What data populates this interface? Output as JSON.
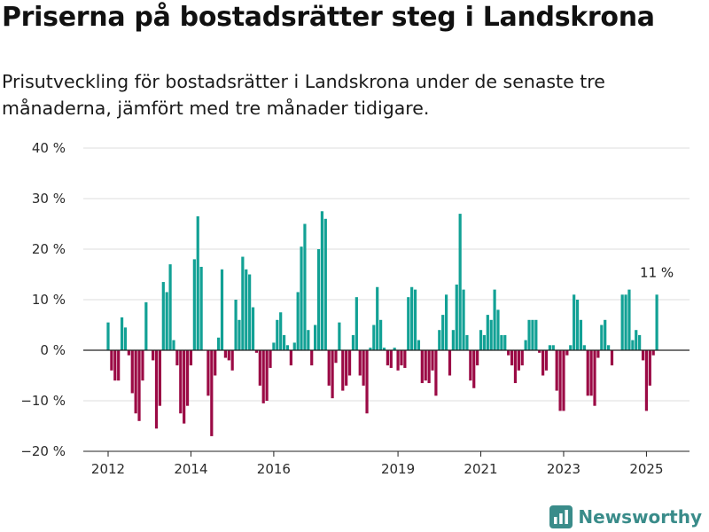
{
  "title": "Priserna på bostadsrätter steg i Landskrona",
  "subtitle": "Prisutveckling för bostadsrätter i Landskrona under de senaste tre månaderna, jämfört med tre månader tidigare.",
  "logo": {
    "text": "Newsworthy",
    "icon": "bar-chart-logo-icon"
  },
  "colors": {
    "positive": "#12a195",
    "negative": "#9b0a45",
    "grid": "#dddddd",
    "axis": "#222222"
  },
  "chart_data": {
    "type": "bar",
    "unit": "%",
    "x_start": "2012-01",
    "x_end": "2025-05",
    "ylim": [
      -20,
      40
    ],
    "y_ticks": [
      40,
      30,
      20,
      10,
      0,
      -10,
      -20
    ],
    "y_tick_labels": [
      "40 %",
      "30 %",
      "20 %",
      "10 %",
      "0 %",
      "−10 %",
      "−20 %"
    ],
    "x_tick_labels": [
      {
        "x": "2012-01",
        "label": "2012"
      },
      {
        "x": "2014-01",
        "label": "2014"
      },
      {
        "x": "2016-01",
        "label": "2016"
      },
      {
        "x": "2019-01",
        "label": "2019"
      },
      {
        "x": "2021-01",
        "label": "2021"
      },
      {
        "x": "2023-01",
        "label": "2023"
      },
      {
        "x": "2025-01",
        "label": "2025"
      }
    ],
    "grid": true,
    "bars": [
      {
        "x": "2012-01",
        "value": 5.5
      },
      {
        "x": "2012-02",
        "value": -4.0
      },
      {
        "x": "2012-03",
        "value": -6.0
      },
      {
        "x": "2012-04",
        "value": -6.0
      },
      {
        "x": "2012-05",
        "value": 6.5
      },
      {
        "x": "2012-06",
        "value": 4.5
      },
      {
        "x": "2012-07",
        "value": -1.0
      },
      {
        "x": "2012-08",
        "value": -8.5
      },
      {
        "x": "2012-09",
        "value": -12.5
      },
      {
        "x": "2012-10",
        "value": -14.0
      },
      {
        "x": "2012-11",
        "value": -6.0
      },
      {
        "x": "2012-12",
        "value": 9.5
      },
      {
        "x": "2013-02",
        "value": -2.0
      },
      {
        "x": "2013-03",
        "value": -15.5
      },
      {
        "x": "2013-04",
        "value": -11.0
      },
      {
        "x": "2013-05",
        "value": 13.5
      },
      {
        "x": "2013-06",
        "value": 11.5
      },
      {
        "x": "2013-07",
        "value": 17.0
      },
      {
        "x": "2013-08",
        "value": 2.0
      },
      {
        "x": "2013-09",
        "value": -3.0
      },
      {
        "x": "2013-10",
        "value": -12.5
      },
      {
        "x": "2013-11",
        "value": -14.5
      },
      {
        "x": "2013-12",
        "value": -11.0
      },
      {
        "x": "2014-01",
        "value": -3.0
      },
      {
        "x": "2014-02",
        "value": 18.0
      },
      {
        "x": "2014-03",
        "value": 26.5
      },
      {
        "x": "2014-04",
        "value": 16.5
      },
      {
        "x": "2014-06",
        "value": -9.0
      },
      {
        "x": "2014-07",
        "value": -17.0
      },
      {
        "x": "2014-08",
        "value": -5.0
      },
      {
        "x": "2014-09",
        "value": 2.5
      },
      {
        "x": "2014-10",
        "value": 16.0
      },
      {
        "x": "2014-11",
        "value": -1.5
      },
      {
        "x": "2014-12",
        "value": -2.0
      },
      {
        "x": "2015-01",
        "value": -4.0
      },
      {
        "x": "2015-02",
        "value": 10.0
      },
      {
        "x": "2015-03",
        "value": 6.0
      },
      {
        "x": "2015-04",
        "value": 18.5
      },
      {
        "x": "2015-05",
        "value": 16.0
      },
      {
        "x": "2015-06",
        "value": 15.0
      },
      {
        "x": "2015-07",
        "value": 8.5
      },
      {
        "x": "2015-08",
        "value": -0.5
      },
      {
        "x": "2015-09",
        "value": -7.0
      },
      {
        "x": "2015-10",
        "value": -10.5
      },
      {
        "x": "2015-11",
        "value": -10.0
      },
      {
        "x": "2015-12",
        "value": -3.5
      },
      {
        "x": "2016-01",
        "value": 1.5
      },
      {
        "x": "2016-02",
        "value": 6.0
      },
      {
        "x": "2016-03",
        "value": 7.5
      },
      {
        "x": "2016-04",
        "value": 3.0
      },
      {
        "x": "2016-05",
        "value": 1.0
      },
      {
        "x": "2016-06",
        "value": -3.0
      },
      {
        "x": "2016-07",
        "value": 1.5
      },
      {
        "x": "2016-08",
        "value": 11.5
      },
      {
        "x": "2016-09",
        "value": 20.5
      },
      {
        "x": "2016-10",
        "value": 25.0
      },
      {
        "x": "2016-11",
        "value": 4.0
      },
      {
        "x": "2016-12",
        "value": -3.0
      },
      {
        "x": "2017-01",
        "value": 5.0
      },
      {
        "x": "2017-02",
        "value": 20.0
      },
      {
        "x": "2017-03",
        "value": 27.5
      },
      {
        "x": "2017-04",
        "value": 26.0
      },
      {
        "x": "2017-05",
        "value": -7.0
      },
      {
        "x": "2017-06",
        "value": -9.5
      },
      {
        "x": "2017-07",
        "value": -2.5
      },
      {
        "x": "2017-08",
        "value": 5.5
      },
      {
        "x": "2017-09",
        "value": -8.0
      },
      {
        "x": "2017-10",
        "value": -7.0
      },
      {
        "x": "2017-11",
        "value": -5.0
      },
      {
        "x": "2017-12",
        "value": 3.0
      },
      {
        "x": "2018-01",
        "value": 10.5
      },
      {
        "x": "2018-02",
        "value": -5.0
      },
      {
        "x": "2018-03",
        "value": -7.0
      },
      {
        "x": "2018-04",
        "value": -12.5
      },
      {
        "x": "2018-05",
        "value": 0.5
      },
      {
        "x": "2018-06",
        "value": 5.0
      },
      {
        "x": "2018-07",
        "value": 12.5
      },
      {
        "x": "2018-08",
        "value": 6.0
      },
      {
        "x": "2018-09",
        "value": 0.5
      },
      {
        "x": "2018-10",
        "value": -3.0
      },
      {
        "x": "2018-11",
        "value": -3.5
      },
      {
        "x": "2018-12",
        "value": 0.5
      },
      {
        "x": "2019-01",
        "value": -4.0
      },
      {
        "x": "2019-02",
        "value": -3.0
      },
      {
        "x": "2019-03",
        "value": -3.5
      },
      {
        "x": "2019-04",
        "value": 10.5
      },
      {
        "x": "2019-05",
        "value": 12.5
      },
      {
        "x": "2019-06",
        "value": 12.0
      },
      {
        "x": "2019-07",
        "value": 2.0
      },
      {
        "x": "2019-08",
        "value": -6.5
      },
      {
        "x": "2019-09",
        "value": -6.0
      },
      {
        "x": "2019-10",
        "value": -6.5
      },
      {
        "x": "2019-11",
        "value": -4.0
      },
      {
        "x": "2019-12",
        "value": -9.0
      },
      {
        "x": "2020-01",
        "value": 4.0
      },
      {
        "x": "2020-02",
        "value": 7.0
      },
      {
        "x": "2020-03",
        "value": 11.0
      },
      {
        "x": "2020-04",
        "value": -5.0
      },
      {
        "x": "2020-05",
        "value": 4.0
      },
      {
        "x": "2020-06",
        "value": 13.0
      },
      {
        "x": "2020-07",
        "value": 27.0
      },
      {
        "x": "2020-08",
        "value": 12.0
      },
      {
        "x": "2020-09",
        "value": 3.0
      },
      {
        "x": "2020-10",
        "value": -6.0
      },
      {
        "x": "2020-11",
        "value": -7.5
      },
      {
        "x": "2020-12",
        "value": -3.0
      },
      {
        "x": "2021-01",
        "value": 4.0
      },
      {
        "x": "2021-02",
        "value": 3.0
      },
      {
        "x": "2021-03",
        "value": 7.0
      },
      {
        "x": "2021-04",
        "value": 6.0
      },
      {
        "x": "2021-05",
        "value": 12.0
      },
      {
        "x": "2021-06",
        "value": 8.0
      },
      {
        "x": "2021-07",
        "value": 3.0
      },
      {
        "x": "2021-08",
        "value": 3.0
      },
      {
        "x": "2021-09",
        "value": -1.0
      },
      {
        "x": "2021-10",
        "value": -3.0
      },
      {
        "x": "2021-11",
        "value": -6.5
      },
      {
        "x": "2021-12",
        "value": -4.0
      },
      {
        "x": "2022-01",
        "value": -3.0
      },
      {
        "x": "2022-02",
        "value": 2.0
      },
      {
        "x": "2022-03",
        "value": 6.0
      },
      {
        "x": "2022-04",
        "value": 6.0
      },
      {
        "x": "2022-05",
        "value": 6.0
      },
      {
        "x": "2022-06",
        "value": -0.5
      },
      {
        "x": "2022-07",
        "value": -5.0
      },
      {
        "x": "2022-08",
        "value": -4.0
      },
      {
        "x": "2022-09",
        "value": 1.0
      },
      {
        "x": "2022-10",
        "value": 1.0
      },
      {
        "x": "2022-11",
        "value": -8.0
      },
      {
        "x": "2022-12",
        "value": -12.0
      },
      {
        "x": "2023-01",
        "value": -12.0
      },
      {
        "x": "2023-02",
        "value": -1.0
      },
      {
        "x": "2023-03",
        "value": 1.0
      },
      {
        "x": "2023-04",
        "value": 11.0
      },
      {
        "x": "2023-05",
        "value": 10.0
      },
      {
        "x": "2023-06",
        "value": 6.0
      },
      {
        "x": "2023-07",
        "value": 1.0
      },
      {
        "x": "2023-08",
        "value": -9.0
      },
      {
        "x": "2023-09",
        "value": -9.0
      },
      {
        "x": "2023-10",
        "value": -11.0
      },
      {
        "x": "2023-11",
        "value": -1.5
      },
      {
        "x": "2023-12",
        "value": 5.0
      },
      {
        "x": "2024-01",
        "value": 6.0
      },
      {
        "x": "2024-02",
        "value": 1.0
      },
      {
        "x": "2024-03",
        "value": -3.0
      },
      {
        "x": "2024-06",
        "value": 11.0
      },
      {
        "x": "2024-07",
        "value": 11.0
      },
      {
        "x": "2024-08",
        "value": 12.0
      },
      {
        "x": "2024-09",
        "value": 2.0
      },
      {
        "x": "2024-10",
        "value": 4.0
      },
      {
        "x": "2024-11",
        "value": 3.0
      },
      {
        "x": "2024-12",
        "value": -2.0
      },
      {
        "x": "2025-01",
        "value": -12.0
      },
      {
        "x": "2025-02",
        "value": -7.0
      },
      {
        "x": "2025-03",
        "value": -1.0
      },
      {
        "x": "2025-04",
        "value": 11.0
      }
    ],
    "annotation": {
      "x": "2025-04",
      "value": 11,
      "text": "11 %"
    }
  }
}
